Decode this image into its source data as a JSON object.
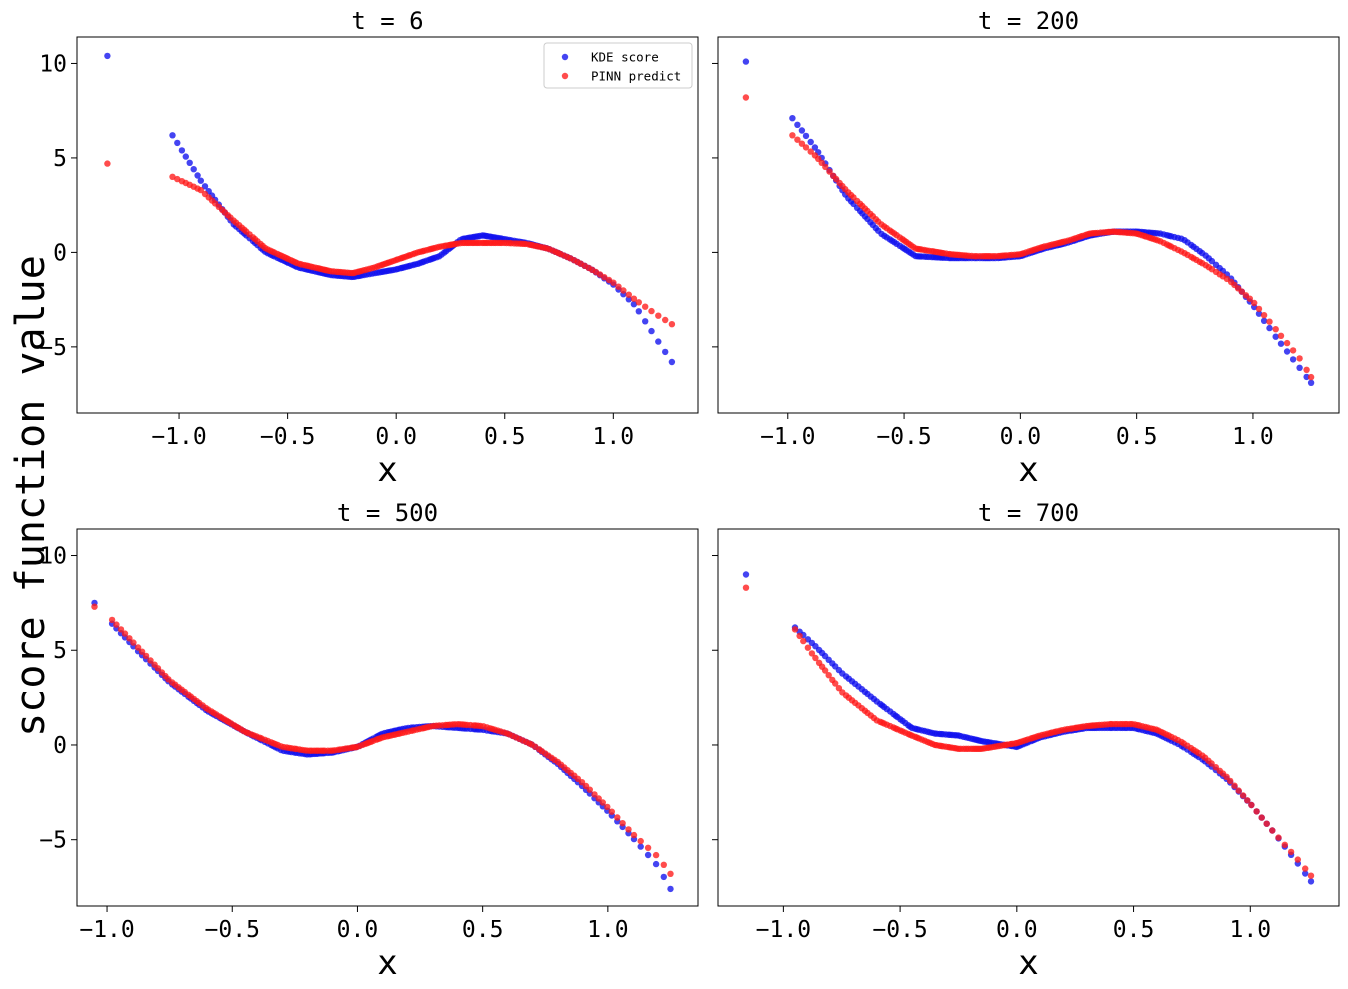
{
  "figure": {
    "ylabel": "score function value",
    "series_names": [
      "KDE score",
      "PINN predict"
    ],
    "series_colors": {
      "KDE score": "#1010ee",
      "PINN predict": "#ff1a1a"
    }
  },
  "chart_data": [
    {
      "type": "scatter",
      "title": "t = 6",
      "xlabel": "x",
      "ylabel": "score function value",
      "xlim": [
        -1.47,
        1.39
      ],
      "ylim": [
        -8.5,
        11.4
      ],
      "xticks": [
        -1.0,
        -0.5,
        0.0,
        0.5,
        1.0
      ],
      "xtick_labels": [
        "−1.0",
        "−0.5",
        "0.0",
        "0.5",
        "1.0"
      ],
      "yticks": [
        10,
        5,
        0,
        -5
      ],
      "ytick_labels": [
        "10",
        "5",
        "0",
        "−5"
      ],
      "show_ytick_labels": true,
      "legend": true,
      "legend_position": "upper right",
      "anchors": {
        "x": [
          -1.33,
          -1.03,
          -0.9,
          -0.75,
          -0.6,
          -0.45,
          -0.3,
          -0.2,
          -0.1,
          0.0,
          0.1,
          0.2,
          0.3,
          0.4,
          0.5,
          0.6,
          0.7,
          0.8,
          0.9,
          1.0,
          1.1,
          1.2,
          1.27
        ],
        "kde": [
          10.4,
          6.2,
          3.8,
          1.5,
          0.0,
          -0.8,
          -1.2,
          -1.3,
          -1.1,
          -0.9,
          -0.6,
          -0.2,
          0.7,
          0.9,
          0.7,
          0.5,
          0.2,
          -0.3,
          -0.9,
          -1.7,
          -2.8,
          -4.6,
          -5.8
        ],
        "pinn": [
          4.7,
          4.0,
          3.3,
          1.7,
          0.2,
          -0.6,
          -1.0,
          -1.1,
          -0.8,
          -0.4,
          0.0,
          0.3,
          0.5,
          0.5,
          0.5,
          0.45,
          0.2,
          -0.3,
          -0.9,
          -1.6,
          -2.5,
          -3.3,
          -3.8
        ]
      }
    },
    {
      "type": "scatter",
      "title": "t = 200",
      "xlabel": "x",
      "ylabel": "score function value",
      "xlim": [
        -1.3,
        1.37
      ],
      "ylim": [
        -8.5,
        11.4
      ],
      "xticks": [
        -1.0,
        -0.5,
        0.0,
        0.5,
        1.0
      ],
      "xtick_labels": [
        "−1.0",
        "−0.5",
        "0.0",
        "0.5",
        "1.0"
      ],
      "yticks": [
        10,
        5,
        0,
        -5
      ],
      "ytick_labels": [
        "10",
        "5",
        "0",
        "−5"
      ],
      "show_ytick_labels": false,
      "legend": false,
      "anchors": {
        "x": [
          -1.18,
          -0.98,
          -0.88,
          -0.75,
          -0.6,
          -0.45,
          -0.3,
          -0.2,
          -0.1,
          0.0,
          0.1,
          0.2,
          0.3,
          0.4,
          0.5,
          0.6,
          0.7,
          0.8,
          0.9,
          1.0,
          1.1,
          1.2,
          1.25
        ],
        "kde": [
          10.1,
          7.1,
          5.5,
          3.0,
          1.0,
          -0.2,
          -0.3,
          -0.3,
          -0.3,
          -0.2,
          0.2,
          0.5,
          0.9,
          1.1,
          1.1,
          1.0,
          0.7,
          -0.2,
          -1.3,
          -2.8,
          -4.5,
          -6.1,
          -6.9
        ],
        "pinn": [
          8.2,
          6.2,
          5.1,
          3.3,
          1.5,
          0.2,
          -0.1,
          -0.2,
          -0.2,
          -0.1,
          0.3,
          0.6,
          1.0,
          1.1,
          1.0,
          0.6,
          0.0,
          -0.7,
          -1.5,
          -2.6,
          -4.1,
          -5.6,
          -6.6
        ]
      }
    },
    {
      "type": "scatter",
      "title": "t = 500",
      "xlabel": "x",
      "ylabel": "score function value",
      "xlim": [
        -1.12,
        1.36
      ],
      "ylim": [
        -8.5,
        11.4
      ],
      "xticks": [
        -1.0,
        -0.5,
        0.0,
        0.5,
        1.0
      ],
      "xtick_labels": [
        "−1.0",
        "−0.5",
        "0.0",
        "0.5",
        "1.0"
      ],
      "yticks": [
        10,
        5,
        0,
        -5
      ],
      "ytick_labels": [
        "10",
        "5",
        "0",
        "−5"
      ],
      "show_ytick_labels": true,
      "legend": false,
      "anchors": {
        "x": [
          -1.05,
          -0.98,
          -0.88,
          -0.75,
          -0.6,
          -0.45,
          -0.3,
          -0.2,
          -0.1,
          0.0,
          0.1,
          0.2,
          0.3,
          0.4,
          0.5,
          0.6,
          0.7,
          0.8,
          0.9,
          1.0,
          1.1,
          1.2,
          1.25
        ],
        "kde": [
          7.5,
          6.4,
          5.0,
          3.3,
          1.8,
          0.7,
          -0.3,
          -0.5,
          -0.4,
          -0.1,
          0.6,
          0.9,
          1.0,
          0.9,
          0.8,
          0.6,
          0.0,
          -1.0,
          -2.2,
          -3.5,
          -4.9,
          -6.4,
          -7.6
        ],
        "pinn": [
          7.3,
          6.6,
          5.2,
          3.4,
          1.9,
          0.7,
          -0.1,
          -0.3,
          -0.3,
          -0.1,
          0.4,
          0.7,
          1.0,
          1.1,
          1.0,
          0.6,
          0.0,
          -0.9,
          -2.0,
          -3.3,
          -4.7,
          -5.9,
          -6.8
        ]
      }
    },
    {
      "type": "scatter",
      "title": "t = 700",
      "xlabel": "x",
      "ylabel": "score function value",
      "xlim": [
        -1.28,
        1.38
      ],
      "ylim": [
        -8.5,
        11.4
      ],
      "xticks": [
        -1.0,
        -0.5,
        0.0,
        0.5,
        1.0
      ],
      "xtick_labels": [
        "−1.0",
        "−0.5",
        "0.0",
        "0.5",
        "1.0"
      ],
      "yticks": [
        10,
        5,
        0,
        -5
      ],
      "ytick_labels": [
        "10",
        "5",
        "0",
        "−5"
      ],
      "show_ytick_labels": false,
      "legend": false,
      "anchors": {
        "x": [
          -1.16,
          -0.95,
          -0.87,
          -0.75,
          -0.6,
          -0.45,
          -0.35,
          -0.25,
          -0.15,
          -0.05,
          0.0,
          0.1,
          0.2,
          0.3,
          0.4,
          0.5,
          0.6,
          0.7,
          0.8,
          0.9,
          1.0,
          1.1,
          1.2,
          1.26
        ],
        "kde": [
          9.0,
          6.2,
          5.3,
          3.8,
          2.3,
          0.9,
          0.6,
          0.5,
          0.2,
          0.0,
          -0.1,
          0.4,
          0.7,
          0.9,
          0.9,
          0.9,
          0.6,
          0.0,
          -0.8,
          -1.8,
          -3.1,
          -4.6,
          -6.2,
          -7.2
        ],
        "pinn": [
          8.3,
          6.1,
          4.7,
          2.8,
          1.3,
          0.5,
          0.0,
          -0.2,
          -0.2,
          0.0,
          0.1,
          0.5,
          0.8,
          1.0,
          1.1,
          1.1,
          0.8,
          0.2,
          -0.6,
          -1.7,
          -3.1,
          -4.6,
          -6.0,
          -6.9
        ]
      }
    }
  ]
}
